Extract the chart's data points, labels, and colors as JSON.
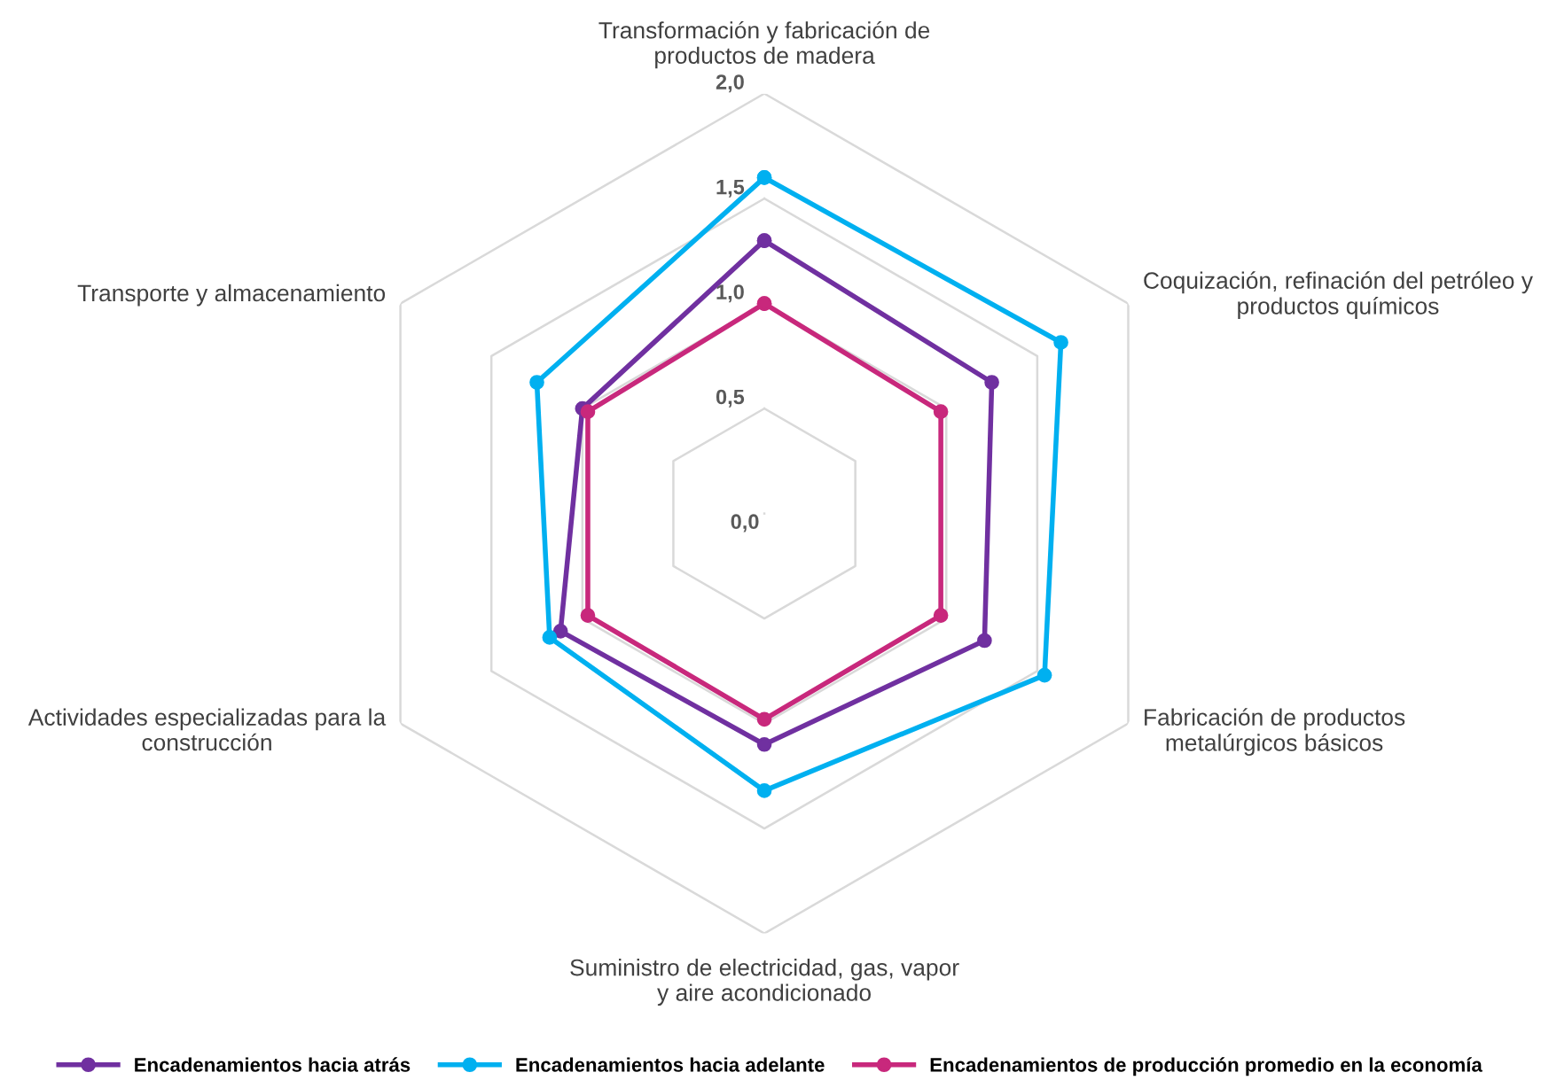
{
  "chart_data": {
    "type": "radar",
    "categories": [
      "Transformación y fabricación de\nproductos de madera",
      "Coquización, refinación del petróleo y\nproductos químicos",
      "Fabricación de productos\nmetalúrgicos básicos",
      "Suministro de electricidad, gas, vapor\ny aire acondicionado",
      "Actividades especializadas para la\nconstrucción",
      "Transporte y almacenamiento"
    ],
    "series": [
      {
        "name": "Encadenamientos hacia atrás",
        "color": "#7030a0",
        "values": [
          1.3,
          1.25,
          1.21,
          1.1,
          1.12,
          1.0
        ]
      },
      {
        "name": "Encadenamientos hacia adelante",
        "color": "#00b0f0",
        "values": [
          1.6,
          1.63,
          1.54,
          1.32,
          1.18,
          1.25
        ]
      },
      {
        "name": "Encadenamientos de producción promedio en la economía",
        "color": "#c8287c",
        "values": [
          1.0,
          0.97,
          0.97,
          0.98,
          0.97,
          0.97
        ]
      }
    ],
    "ylim": [
      0,
      2
    ],
    "yticks": [
      {
        "value": 0,
        "label": "0,0"
      },
      {
        "value": 0.5,
        "label": "0,5"
      },
      {
        "value": 1,
        "label": "1,0"
      },
      {
        "value": 1.5,
        "label": "1,5"
      },
      {
        "value": 2,
        "label": "2,0"
      }
    ],
    "grid": true,
    "marker": "circle",
    "line_style": "solid",
    "legend": "bottom"
  }
}
